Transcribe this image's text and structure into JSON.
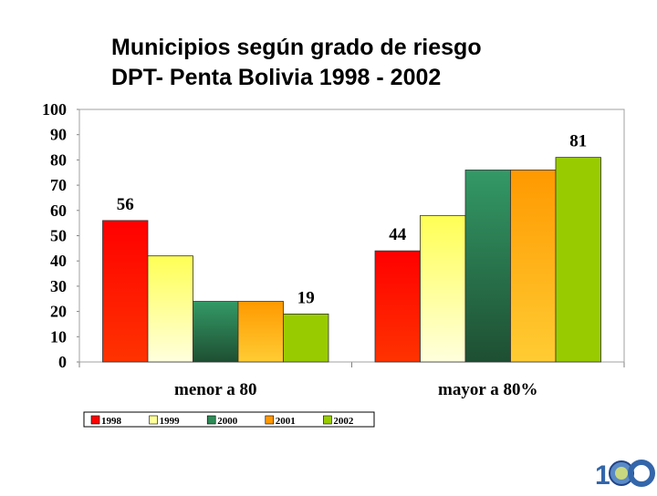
{
  "title": {
    "line1": "Municipios según grado de riesgo",
    "line2": "DPT- Penta Bolivia 1998 - 2002"
  },
  "chart_data": {
    "type": "bar",
    "categories": [
      "menor a 80",
      "mayor a 80%"
    ],
    "series": [
      {
        "name": "1998",
        "values": [
          56,
          44
        ],
        "color": "#ff0000"
      },
      {
        "name": "1999",
        "values": [
          42,
          58
        ],
        "color": "#ffff99"
      },
      {
        "name": "2000",
        "values": [
          24,
          76
        ],
        "color": "#2e8b57"
      },
      {
        "name": "2001",
        "values": [
          24,
          76
        ],
        "color": "#ff9900"
      },
      {
        "name": "2002",
        "values": [
          19,
          81
        ],
        "color": "#99cc00"
      }
    ],
    "data_labels": [
      {
        "series": 0,
        "category": 0,
        "text": "56"
      },
      {
        "series": 4,
        "category": 0,
        "text": "19"
      },
      {
        "series": 0,
        "category": 1,
        "text": "44"
      },
      {
        "series": 4,
        "category": 1,
        "text": "81"
      }
    ],
    "ylim": [
      0,
      100
    ],
    "yticks": [
      0,
      10,
      20,
      30,
      40,
      50,
      60,
      70,
      80,
      90,
      100
    ],
    "xlabel": "",
    "ylabel": "",
    "legend_position": "bottom-left",
    "grid": false
  },
  "logo": {
    "icon": "100-years-emblem-icon",
    "text": "100"
  }
}
